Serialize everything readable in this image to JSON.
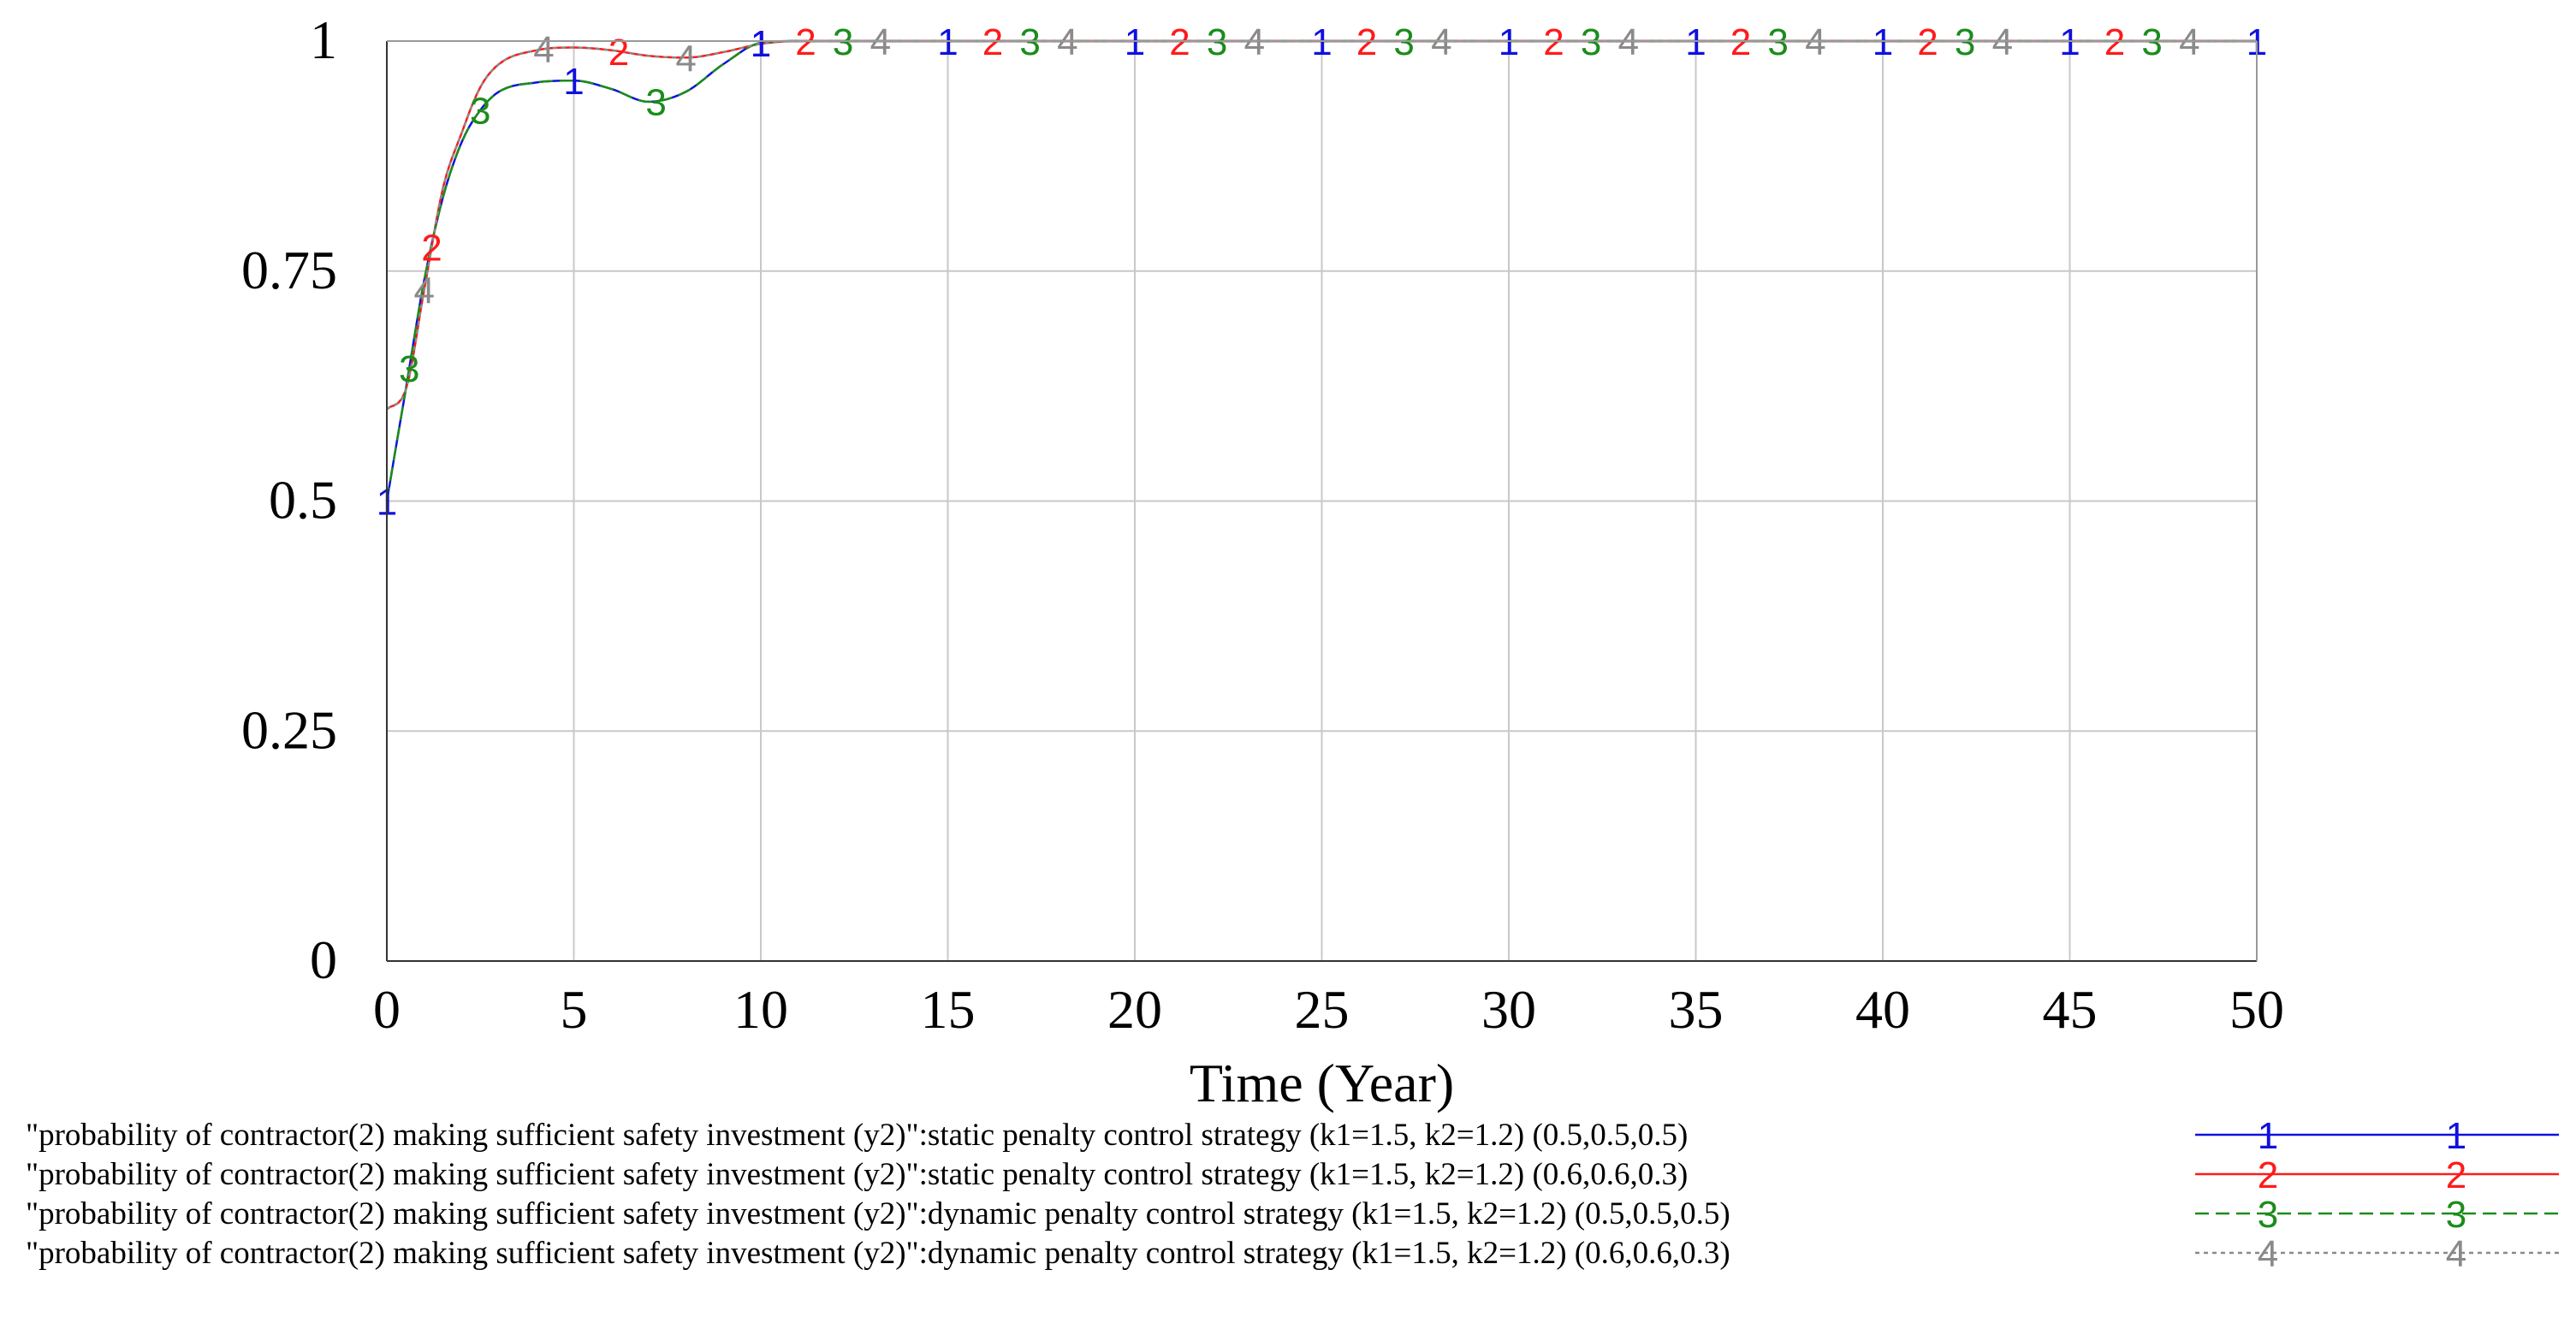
{
  "chart_data": {
    "type": "line",
    "title": "",
    "xlabel": "Time (Year)",
    "ylabel": "",
    "xlim": [
      0,
      50
    ],
    "ylim": [
      0,
      1
    ],
    "xticks": [
      "0",
      "5",
      "10",
      "15",
      "20",
      "25",
      "30",
      "35",
      "40",
      "45",
      "50"
    ],
    "yticks": [
      "0",
      "0.25",
      "0.5",
      "0.75",
      "1"
    ],
    "grid": true,
    "legend_position": "bottom",
    "marker_x": [
      0,
      5,
      10,
      15,
      20,
      25,
      30,
      35,
      40,
      45,
      50
    ],
    "series": [
      {
        "id": "1",
        "name": "\"probability of contractor(2) making sufficient safety investment (y2)\":static penalty control strategy (k1=1.5, k2=1.2) (0.5,0.5,0.5)",
        "color": "#1010e0",
        "dash": "solid",
        "marker_offset": 0,
        "x": [
          0,
          0.5,
          1,
          1.5,
          2,
          2.5,
          3,
          4,
          5,
          6,
          7,
          8,
          9,
          10,
          11,
          12,
          15,
          20,
          30,
          40,
          50
        ],
        "y": [
          0.5,
          0.62,
          0.74,
          0.83,
          0.89,
          0.925,
          0.945,
          0.955,
          0.957,
          0.948,
          0.934,
          0.945,
          0.975,
          0.998,
          1.0,
          1.0,
          1.0,
          1.0,
          1.0,
          1.0,
          1.0
        ]
      },
      {
        "id": "2",
        "name": "\"probability of contractor(2) making sufficient safety investment (y2)\":static penalty control strategy (k1=1.5, k2=1.2) (0.6,0.6,0.3)",
        "color": "#ff1a1a",
        "dash": "solid",
        "marker_offset": 1.2,
        "x": [
          0,
          0.5,
          1,
          1.5,
          2,
          2.5,
          3,
          4,
          5,
          6,
          7,
          8,
          9,
          10,
          11,
          12,
          15,
          20,
          30,
          40,
          50
        ],
        "y": [
          0.6,
          0.62,
          0.73,
          0.84,
          0.9,
          0.95,
          0.975,
          0.99,
          0.993,
          0.99,
          0.984,
          0.982,
          0.988,
          0.997,
          1.0,
          1.0,
          1.0,
          1.0,
          1.0,
          1.0,
          1.0
        ]
      },
      {
        "id": "3",
        "name": "\"probability of contractor(2) making sufficient safety investment (y2)\":dynamic penalty control strategy (k1=1.5, k2=1.2) (0.5,0.5,0.5)",
        "color": "#1a8c1a",
        "dash": "dashed",
        "marker_offset": 2.2,
        "x": [
          0,
          0.5,
          1,
          1.5,
          2,
          2.5,
          3,
          4,
          5,
          6,
          7,
          8,
          9,
          10,
          11,
          12,
          15,
          20,
          30,
          40,
          50
        ],
        "y": [
          0.5,
          0.62,
          0.74,
          0.83,
          0.89,
          0.925,
          0.945,
          0.955,
          0.957,
          0.948,
          0.934,
          0.945,
          0.975,
          0.998,
          1.0,
          1.0,
          1.0,
          1.0,
          1.0,
          1.0,
          1.0
        ]
      },
      {
        "id": "4",
        "name": "\"probability of contractor(2) making sufficient safety investment (y2)\":dynamic penalty control strategy (k1=1.5, k2=1.2) (0.6,0.6,0.3)",
        "color": "#8a8a8a",
        "dash": "dotted",
        "marker_offset": 3.2,
        "x": [
          0,
          0.5,
          1,
          1.5,
          2,
          2.5,
          3,
          4,
          5,
          6,
          7,
          8,
          9,
          10,
          11,
          12,
          15,
          20,
          30,
          40,
          50
        ],
        "y": [
          0.6,
          0.62,
          0.73,
          0.84,
          0.9,
          0.95,
          0.975,
          0.99,
          0.993,
          0.99,
          0.984,
          0.982,
          0.988,
          0.997,
          1.0,
          1.0,
          1.0,
          1.0,
          1.0,
          1.0,
          1.0
        ]
      }
    ]
  }
}
